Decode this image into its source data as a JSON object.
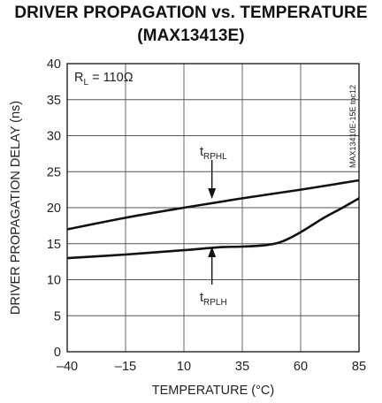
{
  "chart_data": {
    "type": "line",
    "title": "DRIVER PROPAGATION vs. TEMPERATURE",
    "subtitle": "(MAX13413E)",
    "xlabel": "TEMPERATURE (°C)",
    "ylabel": "DRIVER PROPAGATION DELAY (ns)",
    "xlim": [
      -40,
      85
    ],
    "ylim": [
      0,
      40
    ],
    "x_ticks": [
      -40,
      -15,
      10,
      35,
      60,
      85
    ],
    "y_ticks": [
      0,
      5,
      10,
      15,
      20,
      25,
      30,
      35,
      40
    ],
    "grid": true,
    "condition": {
      "prefix": "R",
      "sub": "L",
      "suffix": " = 110Ω"
    },
    "watermark": "MAX13410E-15E toc12",
    "series": [
      {
        "name": "tRPHL",
        "label_main": "t",
        "label_sub": "RPHL",
        "x": [
          -40,
          -15,
          10,
          35,
          60,
          85
        ],
        "y": [
          17.0,
          18.6,
          20.0,
          21.3,
          22.5,
          23.8
        ]
      },
      {
        "name": "tRPLH",
        "label_main": "t",
        "label_sub": "RPLH",
        "x": [
          -40,
          -15,
          10,
          25,
          35,
          45,
          52,
          60,
          70,
          78,
          85
        ],
        "y": [
          13.0,
          13.5,
          14.1,
          14.5,
          14.6,
          14.8,
          15.3,
          16.6,
          18.6,
          20.0,
          21.3
        ]
      }
    ]
  }
}
